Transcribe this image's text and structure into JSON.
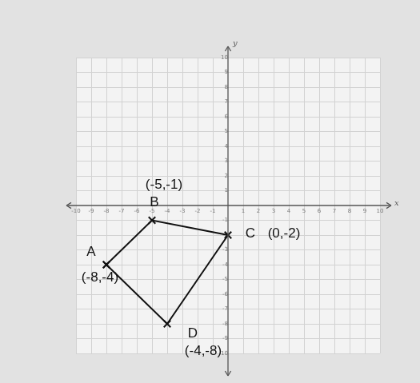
{
  "chart_data": {
    "type": "line",
    "xlabel": "x",
    "ylabel": "y",
    "x": [
      -8,
      -5,
      0,
      -4,
      -8
    ],
    "values": [
      -4,
      -1,
      -2,
      -8,
      -4
    ],
    "point_labels": [
      "A",
      "B",
      "C",
      "D",
      null
    ],
    "annotations": [
      "(-8,-4)",
      "(-5,-1)",
      "(0,-2)",
      "(-4,-8)",
      null
    ],
    "xlim": [
      -10,
      10
    ],
    "ylim": [
      -10,
      10
    ],
    "xticks": [
      -10,
      -9,
      -8,
      -7,
      -6,
      -5,
      -4,
      -3,
      -2,
      -1,
      1,
      2,
      3,
      4,
      5,
      6,
      7,
      8,
      9,
      10
    ],
    "yticks": [
      -10,
      -9,
      -8,
      -7,
      -6,
      -5,
      -4,
      -3,
      -2,
      -1,
      1,
      2,
      3,
      4,
      5,
      6,
      7,
      8,
      9,
      10
    ],
    "grid": true,
    "color": "#111111",
    "marker": "x",
    "line_style": "solid"
  }
}
